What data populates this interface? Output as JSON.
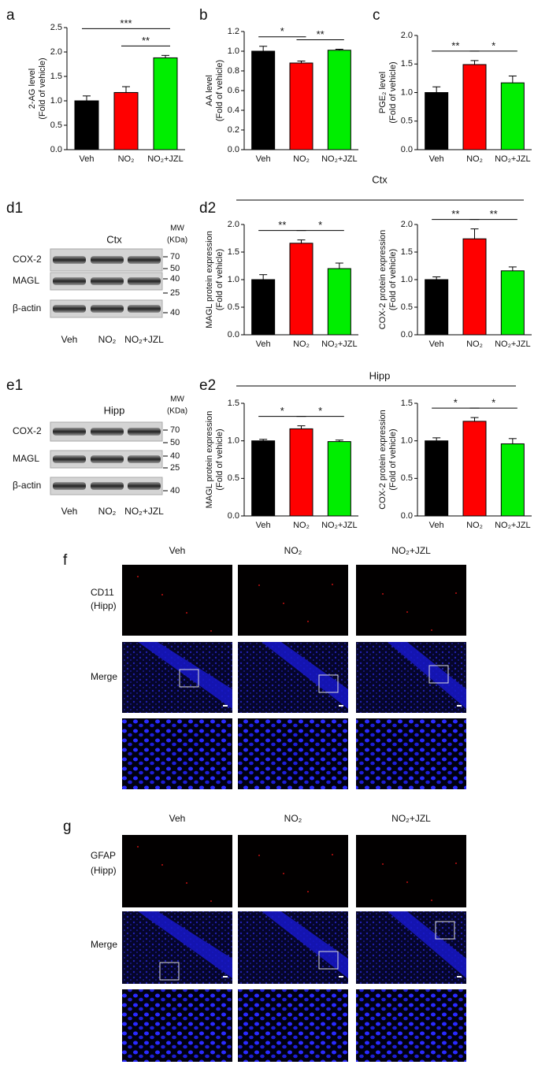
{
  "chart_data": [
    {
      "type": "bar",
      "panel": "a",
      "ylabel": [
        "2-AG level",
        "(Fold of vehicle)"
      ],
      "categories": [
        "Veh",
        "NO₂",
        "NO₂+JZL"
      ],
      "values": [
        1.0,
        1.17,
        1.88
      ],
      "errors": [
        0.1,
        0.12,
        0.05
      ],
      "colors": [
        "#000000",
        "#ff0000",
        "#00ee00"
      ],
      "ylim": [
        0,
        2.5
      ],
      "yticks": [
        {
          "value": 0,
          "label": "0.0"
        },
        0.5,
        {
          "value": 1,
          "label": "1.0"
        },
        1.5,
        {
          "value": 2,
          "label": "2.0"
        },
        2.5
      ],
      "significance": [
        {
          "label": "***",
          "from": 0,
          "to": 2
        },
        {
          "label": "**",
          "from": 1,
          "to": 2
        }
      ]
    },
    {
      "type": "bar",
      "panel": "b",
      "ylabel": [
        "AA level",
        "(Fold of vehicle)"
      ],
      "categories": [
        "Veh",
        "NO₂",
        "NO₂+JZL"
      ],
      "values": [
        1.0,
        0.88,
        1.01
      ],
      "errors": [
        0.05,
        0.02,
        0.01
      ],
      "colors": [
        "#000000",
        "#ff0000",
        "#00ee00"
      ],
      "ylim": [
        0,
        1.2
      ],
      "yticks": [
        {
          "value": 0,
          "label": "0.0"
        },
        0.2,
        0.4,
        0.6,
        0.8,
        {
          "value": 1,
          "label": "1.0"
        },
        1.2
      ],
      "significance": [
        {
          "label": "*",
          "from": 0,
          "to": 1
        },
        {
          "label": "**",
          "from": 1,
          "to": 2
        }
      ]
    },
    {
      "type": "bar",
      "panel": "c",
      "ylabel": [
        "PGE₂ level",
        "(Fold of vehicle)"
      ],
      "categories": [
        "Veh",
        "NO₂",
        "NO₂+JZL"
      ],
      "values": [
        1.0,
        1.49,
        1.17
      ],
      "errors": [
        0.1,
        0.07,
        0.12
      ],
      "colors": [
        "#000000",
        "#ff0000",
        "#00ee00"
      ],
      "ylim": [
        0,
        2
      ],
      "yticks": [
        {
          "value": 0,
          "label": "0.0"
        },
        0.5,
        {
          "value": 1,
          "label": "1.0"
        },
        1.5,
        {
          "value": 2,
          "label": "2.0"
        }
      ],
      "significance": [
        {
          "label": "**",
          "from": 0,
          "to": 1
        },
        {
          "label": "*",
          "from": 1,
          "to": 2
        }
      ]
    },
    {
      "type": "bar",
      "ylabel": [
        "MAGL protein expression",
        "(Fold of vehicle)"
      ],
      "categories": [
        "Veh",
        "NO₂",
        "NO₂+JZL"
      ],
      "values": [
        1.0,
        1.66,
        1.2
      ],
      "errors": [
        0.09,
        0.06,
        0.1
      ],
      "colors": [
        "#000000",
        "#ff0000",
        "#00ee00"
      ],
      "ylim": [
        0,
        2
      ],
      "yticks": [
        {
          "value": 0,
          "label": "0.0"
        },
        0.5,
        {
          "value": 1,
          "label": "1.0"
        },
        1.5,
        {
          "value": 2,
          "label": "2.0"
        }
      ],
      "significance": [
        {
          "label": "**",
          "from": 0,
          "to": 1
        },
        {
          "label": "*",
          "from": 1,
          "to": 2
        }
      ]
    },
    {
      "type": "bar",
      "ylabel": [
        "COX-2 protein expression",
        "(Fold of vehicle)"
      ],
      "categories": [
        "Veh",
        "NO₂",
        "NO₂+JZL"
      ],
      "values": [
        1.0,
        1.74,
        1.16
      ],
      "errors": [
        0.05,
        0.18,
        0.07
      ],
      "colors": [
        "#000000",
        "#ff0000",
        "#00ee00"
      ],
      "ylim": [
        0,
        2
      ],
      "yticks": [
        {
          "value": 0,
          "label": "0.0"
        },
        0.5,
        {
          "value": 1,
          "label": "1.0"
        },
        1.5,
        {
          "value": 2,
          "label": "2.0"
        }
      ],
      "significance": [
        {
          "label": "**",
          "from": 0,
          "to": 1
        },
        {
          "label": "**",
          "from": 1,
          "to": 2
        }
      ]
    },
    {
      "type": "bar",
      "ylabel": [
        "MAGL protein expression",
        "(Fold of vehicle)"
      ],
      "categories": [
        "Veh",
        "NO₂",
        "NO₂+JZL"
      ],
      "values": [
        1.0,
        1.16,
        0.99
      ],
      "errors": [
        0.02,
        0.04,
        0.02
      ],
      "colors": [
        "#000000",
        "#ff0000",
        "#00ee00"
      ],
      "ylim": [
        0,
        1.5
      ],
      "yticks": [
        {
          "value": 0,
          "label": "0.0"
        },
        0.5,
        {
          "value": 1,
          "label": "1.0"
        },
        1.5
      ],
      "significance": [
        {
          "label": "*",
          "from": 0,
          "to": 1
        },
        {
          "label": "*",
          "from": 1,
          "to": 2
        }
      ]
    },
    {
      "type": "bar",
      "ylabel": [
        "COX-2 protein expression",
        "(Fold of vehicle)"
      ],
      "categories": [
        "Veh",
        "NO₂",
        "NO₂+JZL"
      ],
      "values": [
        1.0,
        1.26,
        0.96
      ],
      "errors": [
        0.04,
        0.05,
        0.07
      ],
      "colors": [
        "#000000",
        "#ff0000",
        "#00ee00"
      ],
      "ylim": [
        0,
        1.5
      ],
      "yticks": [
        {
          "value": 0,
          "label": "0.0"
        },
        0.5,
        {
          "value": 1,
          "label": "1.0"
        },
        1.5
      ],
      "significance": [
        {
          "label": "*",
          "from": 0,
          "to": 1
        },
        {
          "label": "*",
          "from": 1,
          "to": 2
        }
      ]
    }
  ],
  "groups": [
    {
      "panel": "d2",
      "title": "Ctx"
    },
    {
      "panel": "e2",
      "title": "Hipp"
    }
  ],
  "blots": [
    {
      "panel": "d1",
      "region": "Ctx",
      "mw_header": [
        "MW",
        "(KDa)"
      ],
      "rows": [
        "COX-2",
        "MAGL",
        "β-actin"
      ],
      "mw": [
        70,
        50,
        40,
        25,
        40
      ],
      "lanes": [
        "Veh",
        "NO₂",
        "NO₂+JZL"
      ]
    },
    {
      "panel": "e1",
      "region": "Hipp",
      "mw_header": [
        "MW",
        "(KDa)"
      ],
      "rows": [
        "COX-2",
        "MAGL",
        "β-actin"
      ],
      "mw": [
        70,
        50,
        40,
        25,
        40
      ],
      "lanes": [
        "Veh",
        "NO₂",
        "NO₂+JZL"
      ]
    }
  ],
  "micrographs": [
    {
      "panel": "f",
      "columns": [
        "Veh",
        "NO₂",
        "NO₂+JZL"
      ],
      "row_labels": [
        [
          "CD11",
          "(Hipp)"
        ],
        [
          "Merge"
        ]
      ]
    },
    {
      "panel": "g",
      "columns": [
        "Veh",
        "NO₂",
        "NO₂+JZL"
      ],
      "row_labels": [
        [
          "GFAP",
          "(Hipp)"
        ],
        [
          "Merge"
        ]
      ]
    }
  ]
}
